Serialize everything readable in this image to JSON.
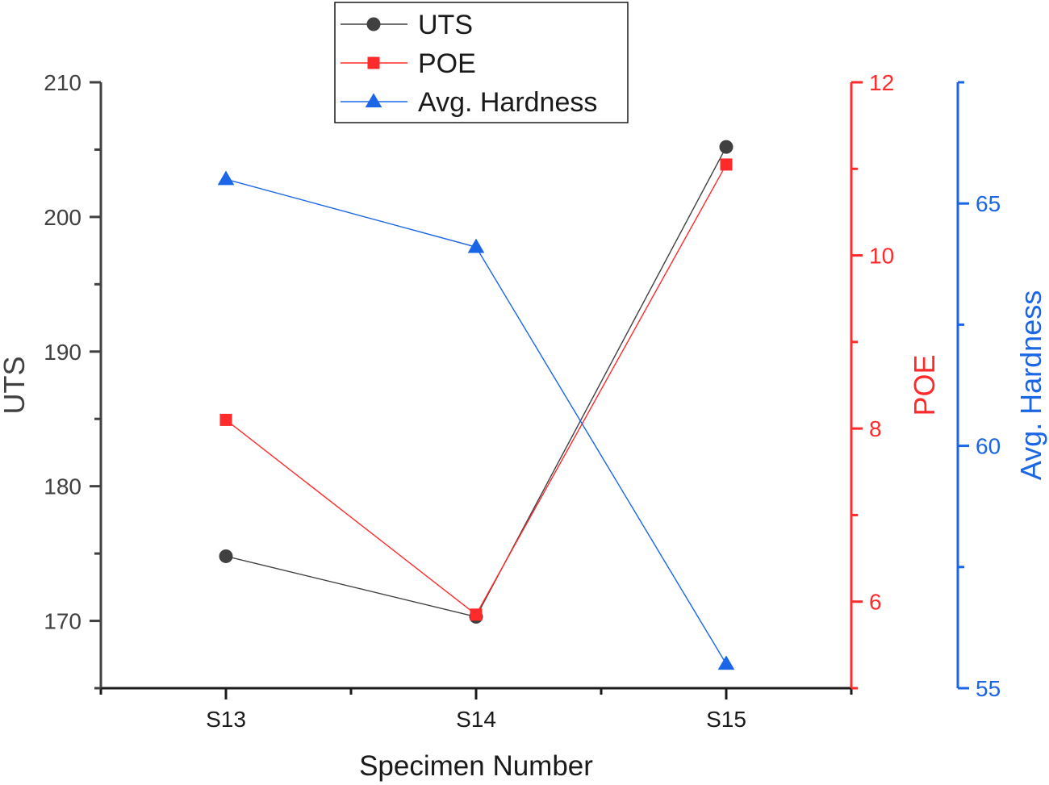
{
  "chart_data": {
    "type": "line",
    "categories": [
      "S13",
      "S14",
      "S15"
    ],
    "xlabel": "Specimen Number",
    "series": [
      {
        "name": "UTS",
        "axis": "left",
        "marker": "circle",
        "color": "#404040",
        "values": [
          174.8,
          170.3,
          205.2
        ]
      },
      {
        "name": "POE",
        "axis": "right1",
        "marker": "square",
        "color": "#ff2a2a",
        "values": [
          8.1,
          5.85,
          11.05
        ]
      },
      {
        "name": "Avg. Hardness",
        "axis": "right2",
        "marker": "triangle",
        "color": "#1a66e6",
        "values": [
          65.5,
          64.1,
          55.5
        ]
      }
    ],
    "axes": {
      "left": {
        "label": "UTS",
        "range": [
          165,
          210
        ],
        "ticks": [
          170,
          180,
          190,
          200,
          210
        ],
        "color": "#404040"
      },
      "right1": {
        "label": "POE",
        "range": [
          5,
          12
        ],
        "ticks": [
          6,
          8,
          10,
          12
        ],
        "color": "#ff2a2a"
      },
      "right2": {
        "label": "Avg. Hardness",
        "range": [
          55,
          67.5
        ],
        "ticks": [
          55,
          60,
          65
        ],
        "color": "#1a66e6"
      }
    },
    "legend_position": "top-center",
    "grid": false
  }
}
